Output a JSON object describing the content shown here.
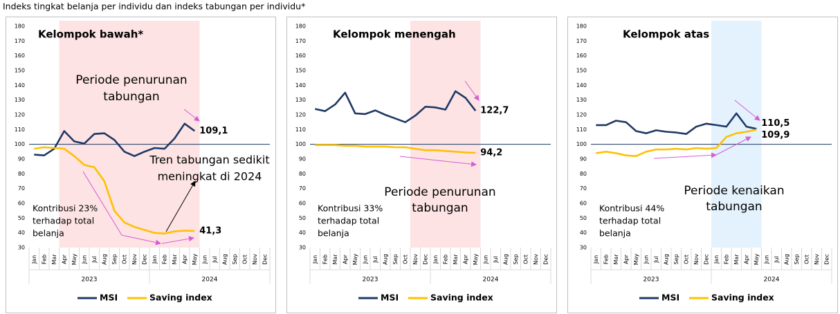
{
  "title": "Indeks tingkat belanja per individu dan indeks tabungan per individu*",
  "chart_data": [
    {
      "type": "line",
      "title": "Kelompok bawah*",
      "categories": [
        "Jan",
        "Feb",
        "Mar",
        "Apr",
        "May",
        "Jun",
        "Jul",
        "Aug",
        "Sep",
        "Oct",
        "Nov",
        "Dec",
        "Jan",
        "Feb",
        "Mar",
        "Apr",
        "May",
        "Jun",
        "Jul",
        "Aug",
        "Sep",
        "Oct",
        "Nov",
        "Dec"
      ],
      "years": [
        "2023",
        "2024"
      ],
      "ylim": [
        30,
        180
      ],
      "yticks": [
        30,
        40,
        50,
        60,
        70,
        80,
        90,
        100,
        110,
        120,
        130,
        140,
        150,
        160,
        170,
        180
      ],
      "reference_line": 100,
      "reference_color": "#1f3864",
      "highlight": {
        "from": 3,
        "to": 16,
        "color": "#fde3e3"
      },
      "series": [
        {
          "name": "MSI",
          "color": "#1f3864",
          "values": [
            93,
            92.5,
            97,
            109,
            102,
            100.5,
            107,
            107.5,
            103,
            95,
            92,
            95,
            97.5,
            97,
            104,
            114,
            109.1,
            null,
            null,
            null,
            null,
            null,
            null,
            null
          ],
          "value_labels": [
            null,
            null,
            null,
            null,
            null,
            null,
            null,
            null,
            null,
            null,
            null,
            null,
            null,
            null,
            null,
            null,
            "109,1",
            null,
            null,
            null,
            null,
            null,
            null,
            null
          ]
        },
        {
          "name": "Saving index",
          "color": "#ffc000",
          "values": [
            97,
            98,
            97.5,
            97,
            92,
            86,
            84.5,
            75,
            55,
            47,
            44,
            42,
            40,
            39.5,
            41,
            41.5,
            41.3,
            null,
            null,
            null,
            null,
            null,
            null,
            null
          ],
          "value_labels": [
            null,
            null,
            null,
            null,
            null,
            null,
            null,
            null,
            null,
            null,
            null,
            null,
            null,
            null,
            null,
            null,
            "41,3",
            null,
            null,
            null,
            null,
            null,
            null,
            null
          ]
        }
      ],
      "annotations": [
        "Periode penurunan",
        "tabungan",
        "Tren tabungan sedikit",
        "meningkat di 2024",
        "Kontribusi 23%",
        "terhadap total",
        "belanja"
      ]
    },
    {
      "type": "line",
      "title": "Kelompok menengah",
      "categories": [
        "Jan",
        "Feb",
        "Mar",
        "Apr",
        "May",
        "Jun",
        "Jul",
        "Aug",
        "Sep",
        "Oct",
        "Nov",
        "Dec",
        "Jan",
        "Feb",
        "Mar",
        "Apr",
        "May",
        "Jun",
        "Jul",
        "Aug",
        "Sep",
        "Oct",
        "Nov",
        "Dec"
      ],
      "years": [
        "2023",
        "2024"
      ],
      "ylim": [
        30,
        180
      ],
      "yticks": [
        30,
        40,
        50,
        60,
        70,
        80,
        90,
        100,
        110,
        120,
        130,
        140,
        150,
        160,
        170,
        180
      ],
      "reference_line": 100,
      "reference_color": "#1f3864",
      "highlight": {
        "from": 10,
        "to": 16,
        "color": "#fde3e3"
      },
      "series": [
        {
          "name": "MSI",
          "color": "#1f3864",
          "values": [
            124,
            122.5,
            127,
            135,
            121,
            120.5,
            123,
            120,
            117.5,
            115,
            119.5,
            125.5,
            125,
            123.5,
            136,
            131.5,
            122.7,
            null,
            null,
            null,
            null,
            null,
            null,
            null
          ],
          "value_labels": [
            null,
            null,
            null,
            null,
            null,
            null,
            null,
            null,
            null,
            null,
            null,
            null,
            null,
            null,
            null,
            null,
            "122,7",
            null,
            null,
            null,
            null,
            null,
            null,
            null
          ]
        },
        {
          "name": "Saving index",
          "color": "#ffc000",
          "values": [
            99.5,
            99.5,
            99.5,
            99,
            99,
            98.5,
            98.5,
            98.5,
            98,
            98,
            97,
            96,
            96,
            95.5,
            95,
            94.5,
            94.2,
            null,
            null,
            null,
            null,
            null,
            null,
            null
          ],
          "value_labels": [
            null,
            null,
            null,
            null,
            null,
            null,
            null,
            null,
            null,
            null,
            null,
            null,
            null,
            null,
            null,
            null,
            "94,2",
            null,
            null,
            null,
            null,
            null,
            null,
            null
          ]
        }
      ],
      "annotations": [
        "Periode penurunan",
        "tabungan",
        "Kontribusi 33%",
        "terhadap total",
        "belanja"
      ]
    },
    {
      "type": "line",
      "title": "Kelompok atas",
      "categories": [
        "Jan",
        "Feb",
        "Mar",
        "Apr",
        "May",
        "Jun",
        "Jul",
        "Aug",
        "Sep",
        "Oct",
        "Nov",
        "Dec",
        "Jan",
        "Feb",
        "Mar",
        "Apr",
        "May",
        "Jun",
        "Jul",
        "Aug",
        "Sep",
        "Oct",
        "Nov",
        "Dec"
      ],
      "years": [
        "2023",
        "2024"
      ],
      "ylim": [
        30,
        180
      ],
      "yticks": [
        30,
        40,
        50,
        60,
        70,
        80,
        90,
        100,
        110,
        120,
        130,
        140,
        150,
        160,
        170,
        180
      ],
      "reference_line": 100,
      "reference_color": "#1f3864",
      "highlight": {
        "from": 12,
        "to": 16,
        "color": "#e3f2fd"
      },
      "series": [
        {
          "name": "MSI",
          "color": "#1f3864",
          "values": [
            113,
            113,
            116,
            115,
            109,
            107.5,
            109.5,
            108.5,
            108,
            107,
            112,
            114,
            113,
            112,
            121,
            112,
            110.5,
            null,
            null,
            null,
            null,
            null,
            null,
            null
          ],
          "value_labels": [
            null,
            null,
            null,
            null,
            null,
            null,
            null,
            null,
            null,
            null,
            null,
            null,
            null,
            null,
            null,
            null,
            "110,5",
            null,
            null,
            null,
            null,
            null,
            null,
            null
          ]
        },
        {
          "name": "Saving index",
          "color": "#ffc000",
          "values": [
            94,
            95,
            94,
            92.5,
            92,
            95,
            96.5,
            96.5,
            97,
            96.5,
            97.5,
            97,
            97.5,
            105,
            107.5,
            108.5,
            109.9,
            null,
            null,
            null,
            null,
            null,
            null,
            null
          ],
          "value_labels": [
            null,
            null,
            null,
            null,
            null,
            null,
            null,
            null,
            null,
            null,
            null,
            null,
            null,
            null,
            null,
            null,
            "109,9",
            null,
            null,
            null,
            null,
            null,
            null,
            null
          ]
        }
      ],
      "annotations": [
        "Periode kenaikan",
        "tabungan",
        "Kontribusi 44%",
        "terhadap total",
        "belanja"
      ]
    }
  ]
}
